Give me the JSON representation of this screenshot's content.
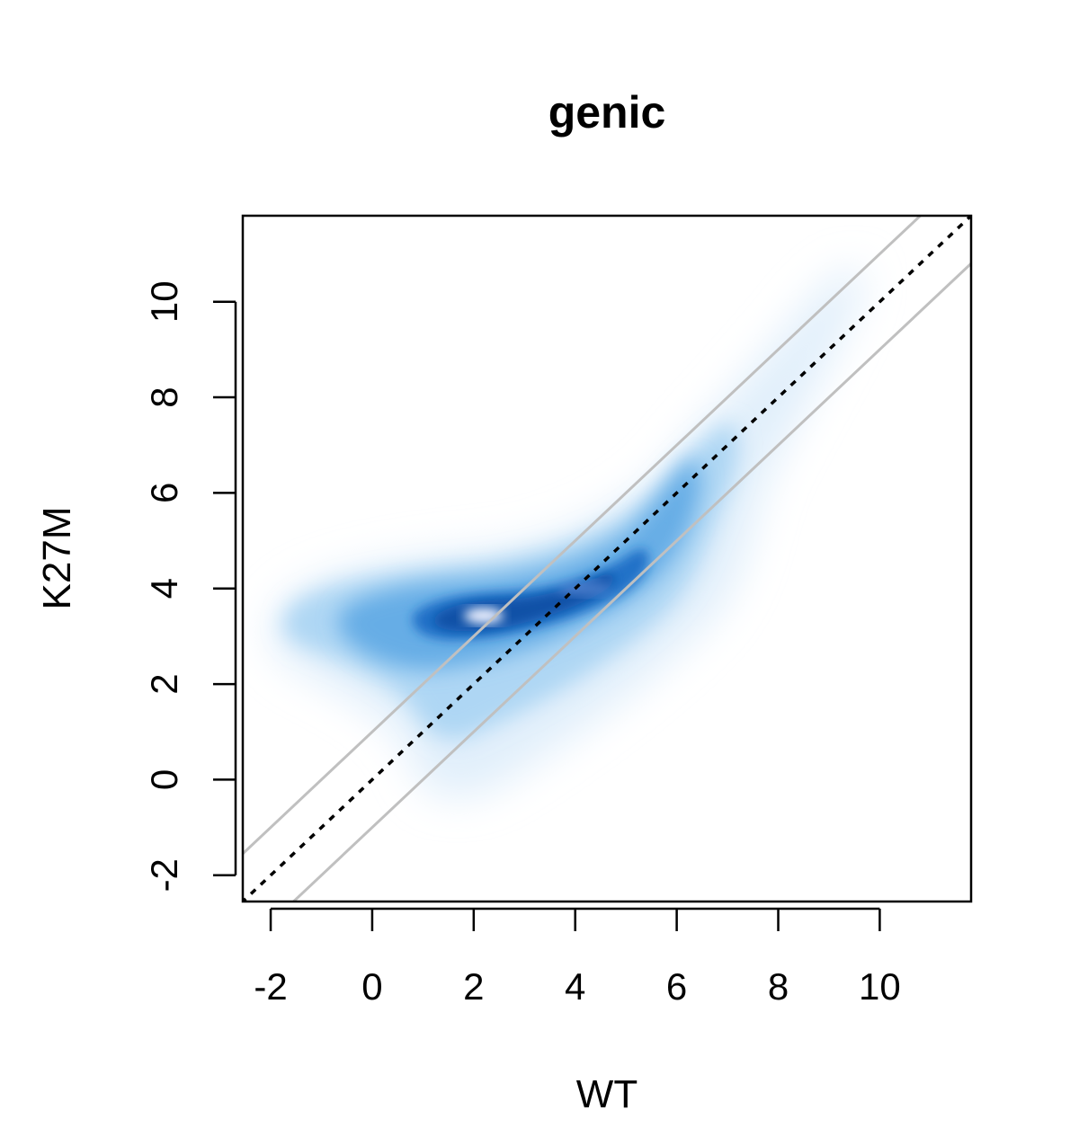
{
  "chart_data": {
    "type": "heatmap",
    "subtype": "smoothed-density-scatter",
    "title": "genic",
    "xlabel": "WT",
    "ylabel": "K27M",
    "xlim": [
      -2.55,
      11.8
    ],
    "ylim": [
      -2.55,
      11.8
    ],
    "x_ticks": [
      -2,
      0,
      2,
      4,
      6,
      8,
      10
    ],
    "y_ticks": [
      -2,
      0,
      2,
      4,
      6,
      8,
      10
    ],
    "x_tick_labels": [
      "-2",
      "0",
      "2",
      "4",
      "6",
      "8",
      "10"
    ],
    "y_tick_labels": [
      "-2",
      "0",
      "2",
      "4",
      "6",
      "8",
      "10"
    ],
    "grid": false,
    "colormap": [
      "#ffffff",
      "#c6e4f7",
      "#6fb4e8",
      "#2f80d0",
      "#0a4fa6",
      "#e8eeff"
    ],
    "density_peak": {
      "x": 2.2,
      "y": 3.4
    },
    "density_ridge": [
      {
        "x": -1.5,
        "y": 3.3
      },
      {
        "x": 0.5,
        "y": 3.4
      },
      {
        "x": 2.2,
        "y": 3.4
      },
      {
        "x": 4.0,
        "y": 4.0
      },
      {
        "x": 5.5,
        "y": 4.8
      },
      {
        "x": 6.5,
        "y": 6.0
      },
      {
        "x": 8.0,
        "y": 8.5
      },
      {
        "x": 9.0,
        "y": 10.5
      }
    ],
    "reference_lines": [
      {
        "type": "identity",
        "intercept": 0,
        "slope": 1,
        "style": "dotted",
        "color": "#000000"
      },
      {
        "type": "offset",
        "intercept": 1,
        "slope": 1,
        "style": "solid",
        "color": "#c0c0c0"
      },
      {
        "type": "offset",
        "intercept": -1,
        "slope": 1,
        "style": "solid",
        "color": "#c0c0c0"
      }
    ]
  }
}
